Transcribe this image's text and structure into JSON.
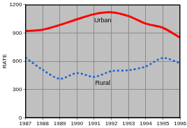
{
  "chart_data": {
    "type": "line",
    "y_label": "RATE",
    "categories": [
      "1987",
      "1988",
      "1989",
      "1990",
      "1991",
      "1992",
      "1993",
      "1994",
      "1995",
      "1996"
    ],
    "series": [
      {
        "name": "Urban",
        "color": "#ff0000",
        "line_style": "solid",
        "values": [
          920,
          935,
          985,
          1045,
          1100,
          1120,
          1080,
          1000,
          955,
          850
        ]
      },
      {
        "name": "Rural",
        "color": "#1f5fd0",
        "line_style": "dotted",
        "values": [
          640,
          510,
          415,
          475,
          435,
          495,
          505,
          545,
          635,
          580
        ]
      }
    ],
    "ylim": [
      0,
      1200
    ],
    "yticks": [
      0,
      300,
      600,
      900,
      1200
    ],
    "grid": true
  }
}
